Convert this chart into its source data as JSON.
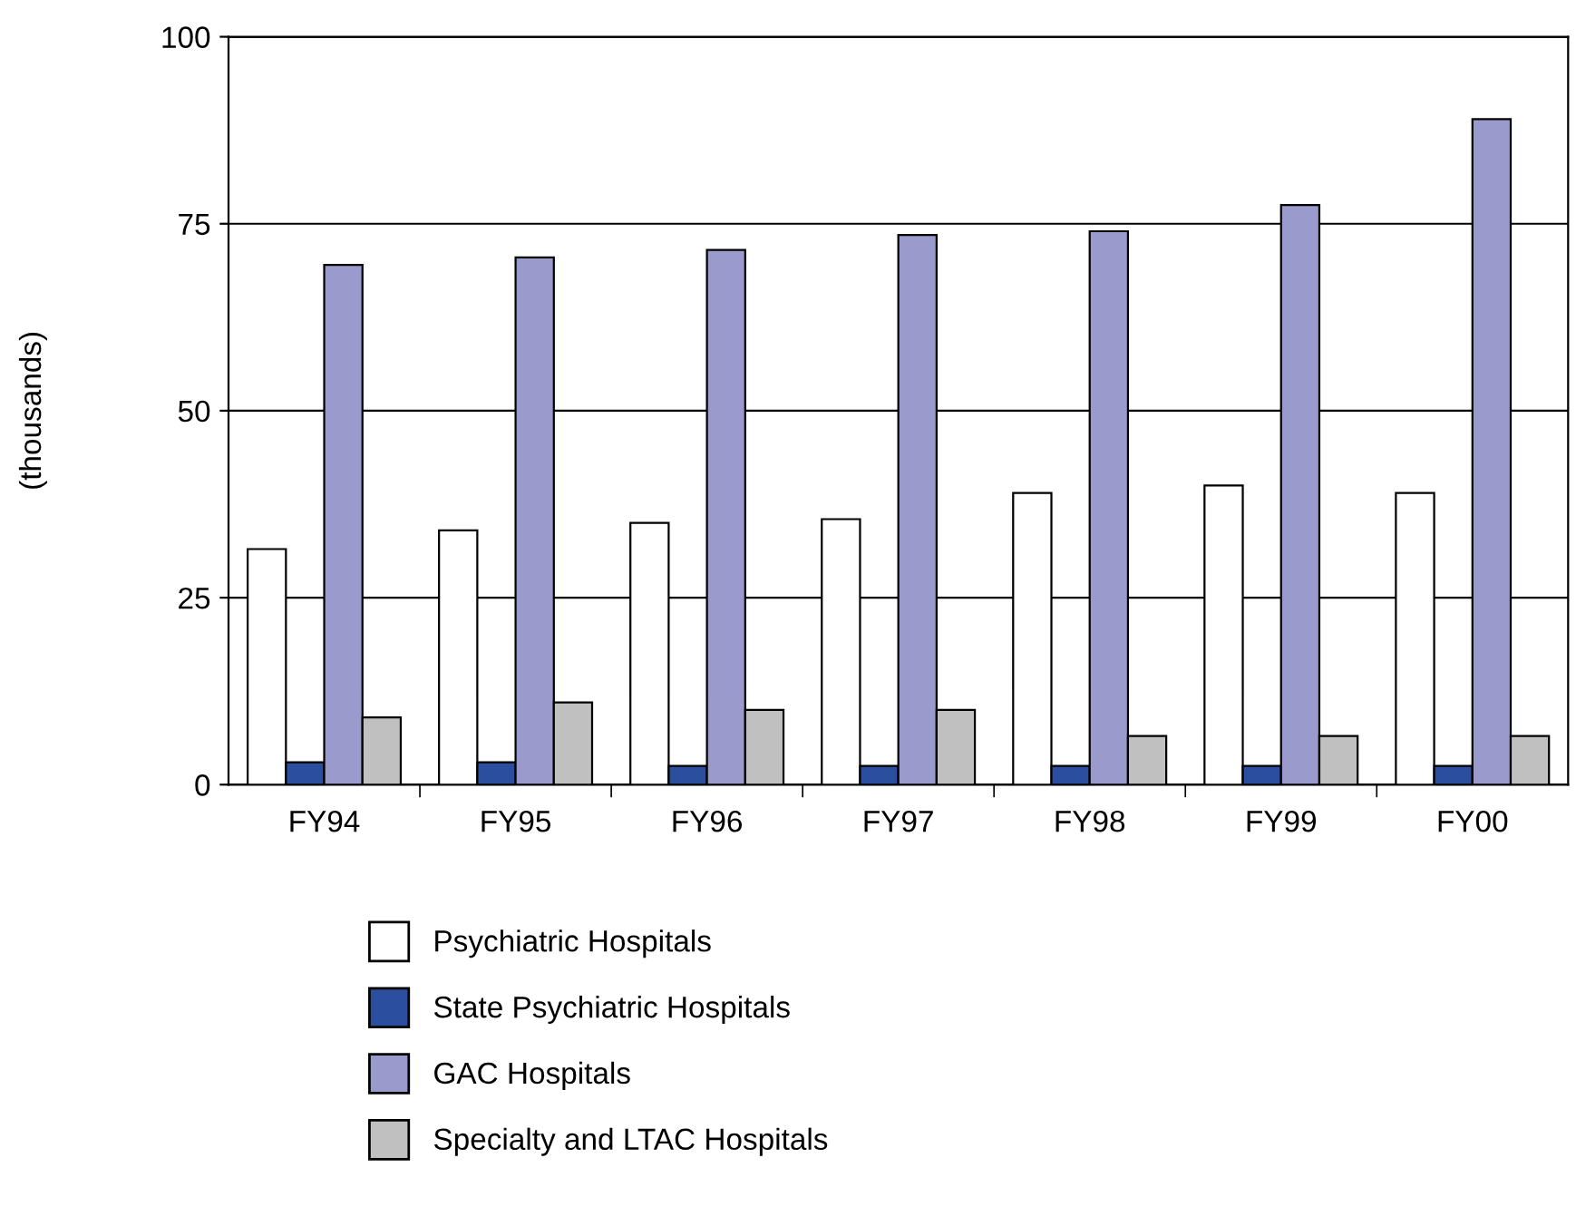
{
  "chart_data": {
    "type": "bar",
    "ylabel": "(thousands)",
    "categories": [
      "FY94",
      "FY95",
      "FY96",
      "FY97",
      "FY98",
      "FY99",
      "FY00"
    ],
    "series": [
      {
        "name": "Psychiatric Hospitals",
        "color": "#ffffff",
        "values": [
          31.5,
          34,
          35,
          35.5,
          39,
          40,
          39
        ]
      },
      {
        "name": "State Psychiatric Hospitals",
        "color": "#2b4f9e",
        "values": [
          3,
          3,
          2.5,
          2.5,
          2.5,
          2.5,
          2.5
        ]
      },
      {
        "name": "GAC Hospitals",
        "color": "#9a9acc",
        "values": [
          69.5,
          70.5,
          71.5,
          73.5,
          74,
          77.5,
          89
        ]
      },
      {
        "name": "Specialty and LTAC Hospitals",
        "color": "#c0c0c0",
        "values": [
          9,
          11,
          10,
          10,
          6.5,
          6.5,
          6.5
        ]
      }
    ],
    "ylim": [
      0,
      100
    ],
    "yticks": [
      0,
      25,
      50,
      75,
      100
    ],
    "grid": "y",
    "legend": "bottom"
  }
}
